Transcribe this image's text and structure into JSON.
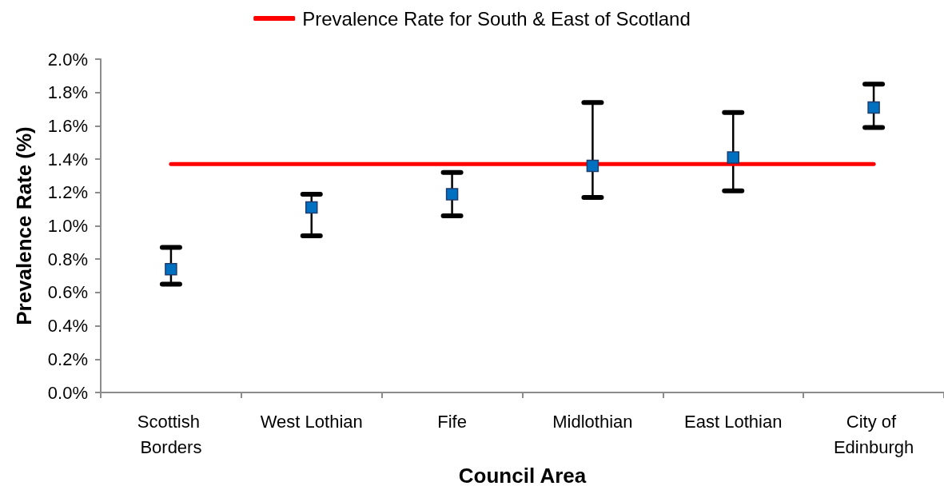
{
  "chart_data": {
    "type": "scatter",
    "xlabel": "Council Area",
    "ylabel": "Prevalence Rate (%)",
    "categories": [
      "Scottish Borders",
      "West Lothian",
      "Fife",
      "Midlothian",
      "East Lothian",
      "City of Edinburgh"
    ],
    "series": [
      {
        "color": "#0070c0",
        "marker": "square",
        "values": [
          0.74,
          1.11,
          1.19,
          1.36,
          1.41,
          1.71
        ],
        "errors": [
          [
            0.65,
            0.87
          ],
          [
            0.94,
            1.19
          ],
          [
            1.06,
            1.32
          ],
          [
            1.17,
            1.74
          ],
          [
            1.21,
            1.68
          ],
          [
            1.59,
            1.85
          ]
        ]
      },
      {
        "type": "line",
        "name": "Prevalence Rate for South & East of Scotland",
        "color": "#ff0000",
        "marker": "none",
        "line_style": "solid",
        "values": [
          1.37,
          1.37,
          1.37,
          1.37,
          1.37,
          1.37
        ]
      }
    ],
    "ylim": [
      0,
      2
    ],
    "yticks": [
      {
        "value": 0,
        "label": "0.0%"
      },
      {
        "value": 0.2,
        "label": "0.2%"
      },
      {
        "value": 0.4,
        "label": "0.4%"
      },
      {
        "value": 0.6,
        "label": "0.6%"
      },
      {
        "value": 0.8,
        "label": "0.8%"
      },
      {
        "value": 1,
        "label": "1.0%"
      },
      {
        "value": 1.2,
        "label": "1.2%"
      },
      {
        "value": 1.4,
        "label": "1.4%"
      },
      {
        "value": 1.6,
        "label": "1.6%"
      },
      {
        "value": 1.8,
        "label": "1.8%"
      },
      {
        "value": 2,
        "label": "2.0%"
      }
    ],
    "legend": "top"
  }
}
